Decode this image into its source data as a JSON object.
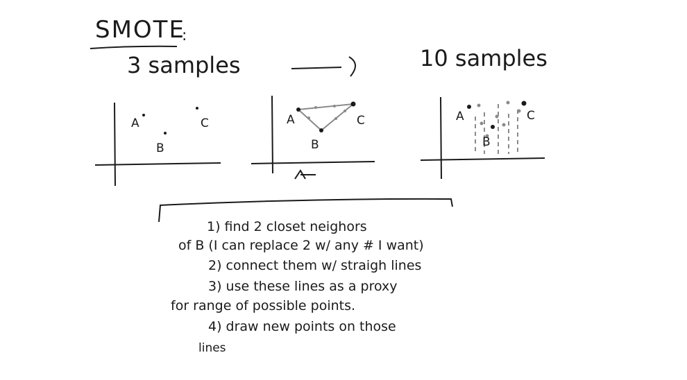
{
  "title": "SMOTE",
  "title_colon": ":",
  "from_label": "3 samples",
  "to_label": "10 samples",
  "panels": [
    {
      "labels": [
        "A",
        "B",
        "C"
      ]
    },
    {
      "labels": [
        "A",
        "B",
        "C"
      ]
    },
    {
      "labels": [
        "A",
        "B",
        "C"
      ]
    }
  ],
  "steps": [
    "1) find 2 closet neighors",
    "of B (I can replace 2 w/ any # I want)",
    "2) connect them w/ straigh lines",
    "3) use these lines as a proxy",
    "for range of possible points.",
    "4) draw new points on those",
    "lines"
  ],
  "colors": {
    "ink": "#1a1a1a",
    "synthetic": "#8a8a8a"
  }
}
